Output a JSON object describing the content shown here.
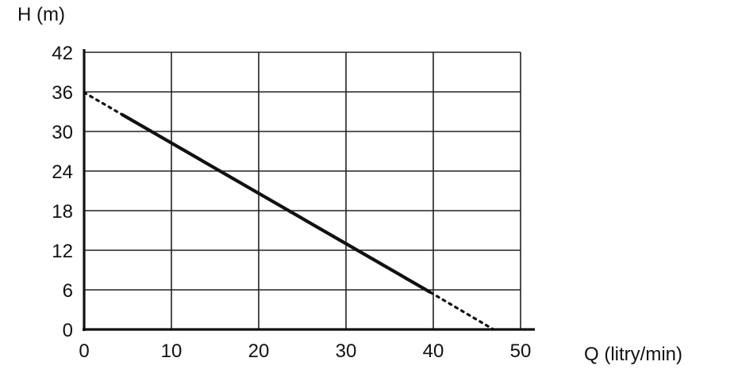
{
  "chart_data": {
    "type": "line",
    "title": "",
    "xlabel": "Q (litry/min)",
    "ylabel": "H (m)",
    "xlim": [
      0,
      50
    ],
    "ylim": [
      0,
      42
    ],
    "xticks": [
      0,
      10,
      20,
      30,
      40,
      50
    ],
    "yticks": [
      0,
      6,
      12,
      18,
      24,
      30,
      36,
      42
    ],
    "grid": true,
    "series": [
      {
        "style": "solid",
        "x": [
          4.3,
          39.7
        ],
        "y": [
          32.6,
          5.6
        ]
      },
      {
        "style": "dotted",
        "x": [
          0,
          4.3
        ],
        "y": [
          35.9,
          32.6
        ]
      },
      {
        "style": "dotted",
        "x": [
          39.7,
          46.9
        ],
        "y": [
          5.6,
          0
        ]
      }
    ]
  }
}
